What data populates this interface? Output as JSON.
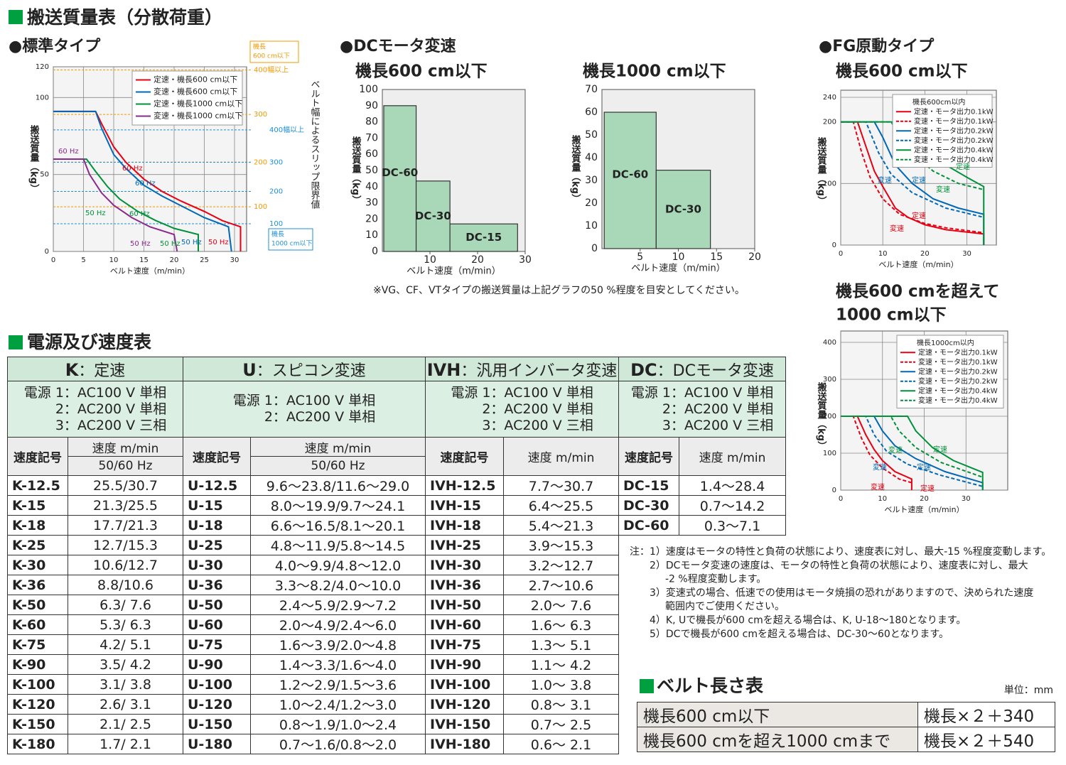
{
  "header": {
    "title": "搬送質量表（分散荷重）",
    "standard": "●標準タイプ",
    "dc": "●DCモータ変速",
    "dc600": "機長600 cm以下",
    "dc1000": "機長1000 cm以下",
    "fg": "●FG原動タイプ",
    "fg600": "機長600 cm以下",
    "fg1000": [
      "機長600 cmを超えて",
      "1000 cm以下"
    ],
    "dc_note": "※VG、CF、VTタイプの搬送質量は上記グラフの50 %程度を目安としてください。"
  },
  "chart_data": [
    {
      "type": "line",
      "xlabel": "ベルト速度（m/min）",
      "ylabel": "搬送質量（kg）",
      "xlim": [
        0,
        32
      ],
      "ylim": [
        0,
        120
      ],
      "xticks": [
        0,
        5,
        10,
        15,
        20,
        25,
        30
      ],
      "yticks": [
        0,
        50,
        100,
        120
      ],
      "grid": true,
      "legend": "upper right",
      "series": [
        {
          "name": "定速・機長600 cm以下",
          "color": "#e60012",
          "x": [
            0,
            7,
            8,
            10,
            12,
            15,
            18,
            21,
            25,
            28,
            31,
            31
          ],
          "values": [
            91,
            91,
            83,
            68,
            58,
            47,
            39,
            33,
            26,
            20,
            16,
            0
          ]
        },
        {
          "name": "変速・機長600 cm以下",
          "color": "#0068b7",
          "x": [
            0,
            7,
            8,
            10,
            12,
            15,
            18,
            21,
            25,
            29,
            29.5
          ],
          "values": [
            91,
            91,
            80,
            63,
            54,
            43,
            36,
            30,
            22,
            16,
            0
          ]
        },
        {
          "name": "定速・機長1000 cm以下",
          "color": "#00913a",
          "x": [
            0,
            5.5,
            7,
            9,
            11,
            14,
            17,
            20,
            24,
            24
          ],
          "values": [
            60,
            60,
            52,
            42,
            34,
            26,
            20,
            15,
            11,
            0
          ]
        },
        {
          "name": "変速・機長1000 cm以下",
          "color": "#8b2a8b",
          "x": [
            0,
            5,
            6,
            8,
            10,
            13,
            16,
            20,
            20.5
          ],
          "values": [
            60,
            60,
            50,
            38,
            30,
            22,
            16,
            11,
            0
          ]
        }
      ],
      "annotations": [
        {
          "text": "60 Hz",
          "color": "#8b2a8b"
        },
        {
          "text": "60 Hz",
          "color": "#e60012"
        },
        {
          "text": "60 Hz",
          "color": "#0068b7"
        },
        {
          "text": "50 Hz",
          "color": "#00913a"
        },
        {
          "text": "60 Hz",
          "color": "#00913a"
        },
        {
          "text": "50 Hz",
          "color": "#8b2a8b"
        },
        {
          "text": "50 Hz",
          "color": "#00913a"
        },
        {
          "text": "50 Hz",
          "color": "#0068b7"
        },
        {
          "text": "50 Hz",
          "color": "#e60012"
        }
      ],
      "slip_title": "ベルト幅によるスリップ限界値",
      "slip_groups": [
        {
          "name": [
            "機長",
            "600 cm以下"
          ],
          "color": "#f39800",
          "lines": [
            {
              "value": 118,
              "label": "400幅以上"
            },
            {
              "value": 89,
              "label": "300"
            },
            {
              "value": 58,
              "label": "200"
            },
            {
              "value": 29,
              "label": "100"
            }
          ]
        },
        {
          "name": [
            "機長",
            "1000 cm以下"
          ],
          "color": "#1c8fd6",
          "lines": [
            {
              "value": 79,
              "label": "400幅以上"
            },
            {
              "value": 58,
              "label": "300"
            },
            {
              "value": 39,
              "label": "200"
            },
            {
              "value": 18,
              "label": "100"
            }
          ]
        }
      ]
    },
    {
      "type": "bar",
      "xlabel": "ベルト速度（m/min）",
      "ylabel": "搬送質量（kg）",
      "xlim": [
        0,
        30
      ],
      "ylim": [
        0,
        100
      ],
      "xticks": [
        10,
        20,
        30
      ],
      "yticks": [
        0,
        10,
        20,
        30,
        40,
        50,
        60,
        70,
        80,
        90,
        100
      ],
      "color": "#a9d8b8",
      "categories": [
        "DC-60",
        "DC-30",
        "DC-15"
      ],
      "bins": [
        0.3,
        7.1,
        14.2,
        28.4
      ],
      "values": [
        90,
        43.5,
        17
      ]
    },
    {
      "type": "bar",
      "xlabel": "ベルト速度（m/min）",
      "ylabel": "搬送質量（kg）",
      "xlim": [
        0,
        20
      ],
      "ylim": [
        0,
        70
      ],
      "xticks": [
        5,
        10,
        15,
        20
      ],
      "yticks": [
        0,
        10,
        20,
        30,
        40,
        50,
        60,
        70
      ],
      "color": "#a9d8b8",
      "categories": [
        "DC-60",
        "DC-30"
      ],
      "bins": [
        0.3,
        7.1,
        14.2
      ],
      "values": [
        60,
        34.5
      ]
    },
    {
      "type": "line",
      "xlabel": "ベルト速度（m/min）",
      "ylabel": "搬送質量（kg）",
      "xlim": [
        0,
        37
      ],
      "ylim": [
        0,
        240
      ],
      "xticks": [
        0,
        10,
        20,
        30
      ],
      "yticks": [
        0,
        100,
        200,
        240
      ],
      "grid": true,
      "legend": "upper right",
      "legend_title": "機長600cm以内",
      "series": [
        {
          "name": "定速・モータ出力0.1kW",
          "color": "#e60012",
          "style": "solid",
          "x": [
            0,
            4,
            6,
            8,
            10,
            13,
            16,
            20,
            25,
            34,
            34
          ],
          "values": [
            200,
            200,
            160,
            120,
            95,
            60,
            45,
            33,
            25,
            18,
            0
          ]
        },
        {
          "name": "変速・モータ出力0.1kW",
          "color": "#e60012",
          "style": "dashed",
          "x": [
            0,
            3,
            5,
            7,
            10,
            14,
            20,
            25,
            34
          ],
          "values": [
            200,
            200,
            150,
            110,
            75,
            50,
            35,
            28,
            20
          ]
        },
        {
          "name": "定速・モータ出力0.2kW",
          "color": "#0068b7",
          "style": "solid",
          "x": [
            0,
            8,
            10,
            13,
            17,
            22,
            28,
            34,
            34
          ],
          "values": [
            200,
            200,
            175,
            130,
            100,
            75,
            60,
            50,
            0
          ]
        },
        {
          "name": "変速・モータ出力0.2kW",
          "color": "#0068b7",
          "style": "dashed",
          "x": [
            0,
            6,
            9,
            12,
            17,
            25,
            34
          ],
          "values": [
            200,
            200,
            150,
            115,
            85,
            60,
            45
          ]
        },
        {
          "name": "定速・モータ出力0.4kW",
          "color": "#00913a",
          "style": "solid",
          "x": [
            0,
            16,
            20,
            25,
            30,
            34,
            34
          ],
          "values": [
            200,
            200,
            160,
            130,
            110,
            95,
            0
          ]
        },
        {
          "name": "変速・モータ出力0.4kW",
          "color": "#00913a",
          "style": "dashed",
          "x": [
            0,
            12,
            16,
            22,
            28,
            34
          ],
          "values": [
            200,
            200,
            155,
            120,
            100,
            90
          ]
        }
      ],
      "annotations": [
        {
          "text": "定速",
          "color": "#00913a"
        },
        {
          "text": "定速",
          "color": "#0068b7"
        },
        {
          "text": "変速",
          "color": "#0068b7"
        },
        {
          "text": "変速",
          "color": "#00913a"
        },
        {
          "text": "定速",
          "color": "#e60012"
        },
        {
          "text": "変速",
          "color": "#e60012"
        }
      ]
    },
    {
      "type": "line",
      "xlabel": "ベルト速度（m/min）",
      "ylabel": "搬送質量（kg）",
      "xlim": [
        0,
        40
      ],
      "ylim": [
        0,
        400
      ],
      "xticks": [
        0,
        10,
        20,
        30
      ],
      "yticks": [
        0,
        100,
        200,
        300,
        400
      ],
      "grid": true,
      "legend": "upper right",
      "legend_title": "機長1000cm以内",
      "series": [
        {
          "name": "定速・モータ出力0.1kW",
          "color": "#e60012",
          "style": "solid",
          "x": [
            0,
            4,
            6,
            8,
            10,
            13,
            17,
            17
          ],
          "values": [
            200,
            200,
            150,
            110,
            80,
            50,
            30,
            0
          ]
        },
        {
          "name": "変速・モータ出力0.1kW",
          "color": "#e60012",
          "style": "dashed",
          "x": [
            0,
            3,
            5,
            7,
            10,
            14,
            17
          ],
          "values": [
            200,
            200,
            140,
            95,
            60,
            30,
            20
          ]
        },
        {
          "name": "定速・モータ出力0.2kW",
          "color": "#0068b7",
          "style": "solid",
          "x": [
            0,
            8,
            10,
            13,
            18,
            25,
            34,
            34
          ],
          "values": [
            200,
            200,
            160,
            120,
            85,
            50,
            20,
            0
          ]
        },
        {
          "name": "変速・モータ出力0.2kW",
          "color": "#0068b7",
          "style": "dashed",
          "x": [
            0,
            6,
            8,
            11,
            16,
            24,
            34
          ],
          "values": [
            200,
            200,
            150,
            105,
            70,
            40,
            10
          ]
        },
        {
          "name": "定速・モータ出力0.4kW",
          "color": "#00913a",
          "style": "solid",
          "x": [
            0,
            16,
            18,
            22,
            27,
            34,
            34
          ],
          "values": [
            200,
            200,
            160,
            115,
            80,
            48,
            0
          ]
        },
        {
          "name": "変速・モータ出力0.4kW",
          "color": "#00913a",
          "style": "dashed",
          "x": [
            0,
            12,
            14,
            18,
            24,
            34
          ],
          "values": [
            200,
            200,
            160,
            115,
            75,
            35
          ]
        }
      ],
      "annotations": [
        {
          "text": "変速",
          "color": "#00913a"
        },
        {
          "text": "定速",
          "color": "#00913a"
        },
        {
          "text": "変速",
          "color": "#0068b7"
        },
        {
          "text": "定速",
          "color": "#0068b7"
        },
        {
          "text": "変速",
          "color": "#e60012"
        },
        {
          "text": "定速",
          "color": "#e60012"
        }
      ]
    }
  ],
  "speed_table": {
    "title": "電源及び速度表",
    "groups": [
      {
        "code": "K",
        "name": "：定速",
        "power": [
          "電源 1：AC100 V 単相",
          "2：AC200 V 単相",
          "3：AC200 V 三相"
        ],
        "code_header": "速度記号",
        "speed_header": [
          "速度 m/min",
          "50/60 Hz"
        ],
        "rows": [
          [
            "K-12.5",
            "25.5/30.7"
          ],
          [
            "K-15",
            "21.3/25.5"
          ],
          [
            "K-18",
            "17.7/21.3"
          ],
          [
            "K-25",
            "12.7/15.3"
          ],
          [
            "K-30",
            "10.6/12.7"
          ],
          [
            "K-36",
            "8.8/10.6"
          ],
          [
            "K-50",
            "6.3/ 7.6"
          ],
          [
            "K-60",
            "5.3/ 6.3"
          ],
          [
            "K-75",
            "4.2/ 5.1"
          ],
          [
            "K-90",
            "3.5/ 4.2"
          ],
          [
            "K-100",
            "3.1/ 3.8"
          ],
          [
            "K-120",
            "2.6/ 3.1"
          ],
          [
            "K-150",
            "2.1/ 2.5"
          ],
          [
            "K-180",
            "1.7/ 2.1"
          ]
        ]
      },
      {
        "code": "U",
        "name": "：スピコン変速",
        "power": [
          "電源 1：AC100 V 単相",
          "2：AC200 V 単相"
        ],
        "code_header": "速度記号",
        "speed_header": [
          "速度 m/min",
          "50/60 Hz"
        ],
        "rows": [
          [
            "U-12.5",
            "9.6～23.8/11.6～29.0"
          ],
          [
            "U-15",
            "8.0～19.9/9.7～24.1"
          ],
          [
            "U-18",
            "6.6～16.5/8.1～20.1"
          ],
          [
            "U-25",
            "4.8～11.9/5.8～14.5"
          ],
          [
            "U-30",
            "4.0～9.9/4.8～12.0"
          ],
          [
            "U-36",
            "3.3～8.2/4.0～10.0"
          ],
          [
            "U-50",
            "2.4～5.9/2.9～7.2"
          ],
          [
            "U-60",
            "2.0～4.9/2.4～6.0"
          ],
          [
            "U-75",
            "1.6～3.9/2.0～4.8"
          ],
          [
            "U-90",
            "1.4～3.3/1.6～4.0"
          ],
          [
            "U-100",
            "1.2～2.9/1.5～3.6"
          ],
          [
            "U-120",
            "1.0～2.4/1.2～3.0"
          ],
          [
            "U-150",
            "0.8～1.9/1.0～2.4"
          ],
          [
            "U-180",
            "0.7～1.6/0.8～2.0"
          ]
        ]
      },
      {
        "code": "IVH",
        "name": "：汎用インバータ変速",
        "power": [
          "電源 1：AC100 V 単相",
          "2：AC200 V 単相",
          "3：AC200 V 三相"
        ],
        "code_header": "速度記号",
        "speed_header": [
          "速度 m/min"
        ],
        "rows": [
          [
            "IVH-12.5",
            "7.7～30.7"
          ],
          [
            "IVH-15",
            "6.4～25.5"
          ],
          [
            "IVH-18",
            "5.4～21.3"
          ],
          [
            "IVH-25",
            "3.9～15.3"
          ],
          [
            "IVH-30",
            "3.2～12.7"
          ],
          [
            "IVH-36",
            "2.7～10.6"
          ],
          [
            "IVH-50",
            "2.0～ 7.6"
          ],
          [
            "IVH-60",
            "1.6～ 6.3"
          ],
          [
            "IVH-75",
            "1.3～ 5.1"
          ],
          [
            "IVH-90",
            "1.1～ 4.2"
          ],
          [
            "IVH-100",
            "1.0～ 3.8"
          ],
          [
            "IVH-120",
            "0.8～ 3.1"
          ],
          [
            "IVH-150",
            "0.7～ 2.5"
          ],
          [
            "IVH-180",
            "0.6～ 2.1"
          ]
        ]
      },
      {
        "code": "DC",
        "name": "：DCモータ変速",
        "power": [
          "電源 1：AC100 V 単相",
          "2：AC200 V 単相",
          "3：AC200 V 三相"
        ],
        "code_header": "速度記号",
        "speed_header": [
          "速度 m/min"
        ],
        "rows": [
          [
            "DC-15",
            "1.4～28.4"
          ],
          [
            "DC-30",
            "0.7～14.2"
          ],
          [
            "DC-60",
            "0.3～7.1"
          ]
        ]
      }
    ]
  },
  "notes": {
    "label": "注：",
    "items": [
      [
        "1）速度はモータの特性と負荷の状態により、速度表に対し、最大-15 %程度変動します。"
      ],
      [
        "2）DCモータ変速の速度は、モータの特性と負荷の状態により、速度表に対し、最大",
        "-2 %程度変動します。"
      ],
      [
        "3）変速式の場合、低速での使用はモータ焼損の恐れがありますので、決められた速度",
        "範囲内でご使用ください。"
      ],
      [
        "4）K, Uで機長が600 cmを超える場合は、K, U-18～180となります。"
      ],
      [
        "5）DCで機長が600 cmを超える場合は、DC-30～60となります。"
      ]
    ]
  },
  "belt": {
    "title": "ベルト長さ表",
    "unit": "単位：mm",
    "rows": [
      [
        "機長600 cm以下",
        "機長×２＋340"
      ],
      [
        "機長600 cmを超え1000 cmまで",
        "機長×２＋540"
      ]
    ]
  }
}
